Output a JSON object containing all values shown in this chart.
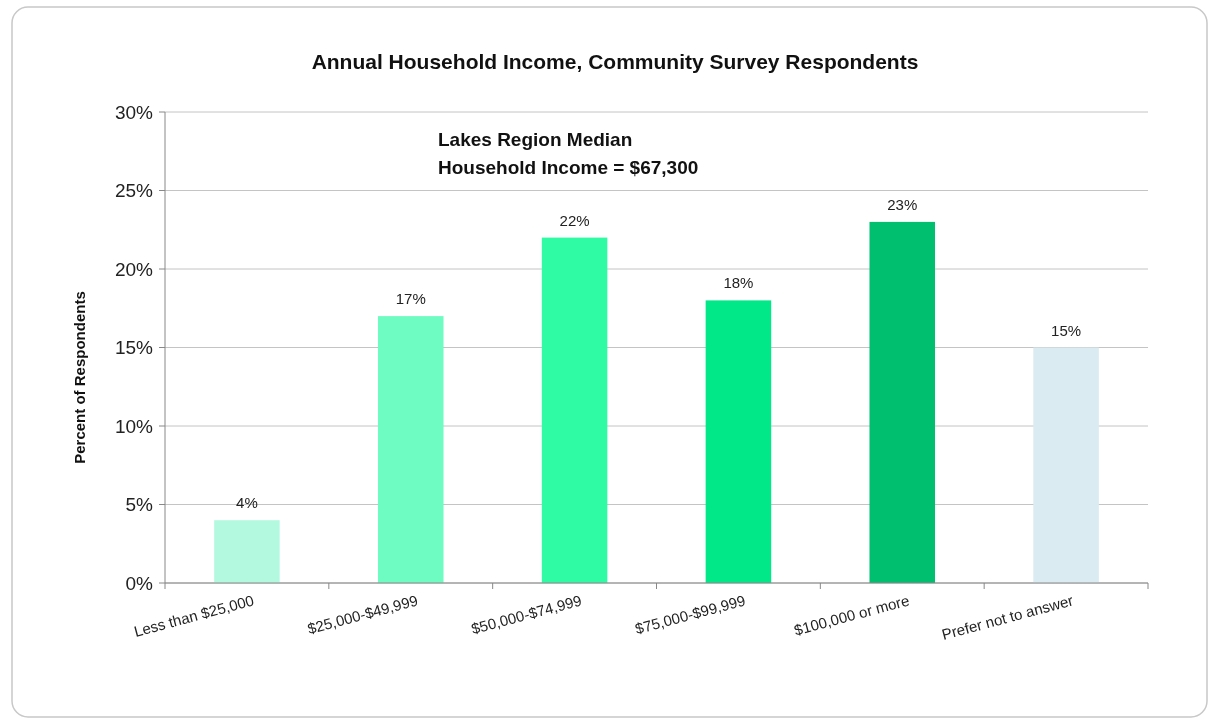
{
  "chart_data": {
    "type": "bar",
    "title": "Annual Household Income, Community Survey Respondents",
    "ylabel": "Percent of Respondents",
    "categories": [
      "Less than $25,000",
      "$25,000-$49,999",
      "$50,000-$74,999",
      "$75,000-$99,999",
      "$100,000 or more",
      "Prefer not to answer"
    ],
    "values": [
      4,
      17,
      22,
      18,
      23,
      15
    ],
    "colors": [
      "#b3f9e0",
      "#6ffcc2",
      "#2efba3",
      "#00e887",
      "#00bf6f",
      "#daebf2"
    ],
    "ylim": [
      0,
      30
    ],
    "yticks": [
      {
        "value": 0,
        "label": "0%"
      },
      {
        "value": 5,
        "label": "5%"
      },
      {
        "value": 10,
        "label": "10%"
      },
      {
        "value": 15,
        "label": "15%"
      },
      {
        "value": 20,
        "label": "20%"
      },
      {
        "value": 25,
        "label": "25%"
      },
      {
        "value": 30,
        "label": "30%"
      }
    ],
    "value_labels": [
      "4%",
      "17%",
      "22%",
      "18%",
      "23%",
      "15%"
    ],
    "annotations": [
      "Lakes Region Median\nHousehold Income = $67,300"
    ],
    "grid": "y"
  }
}
